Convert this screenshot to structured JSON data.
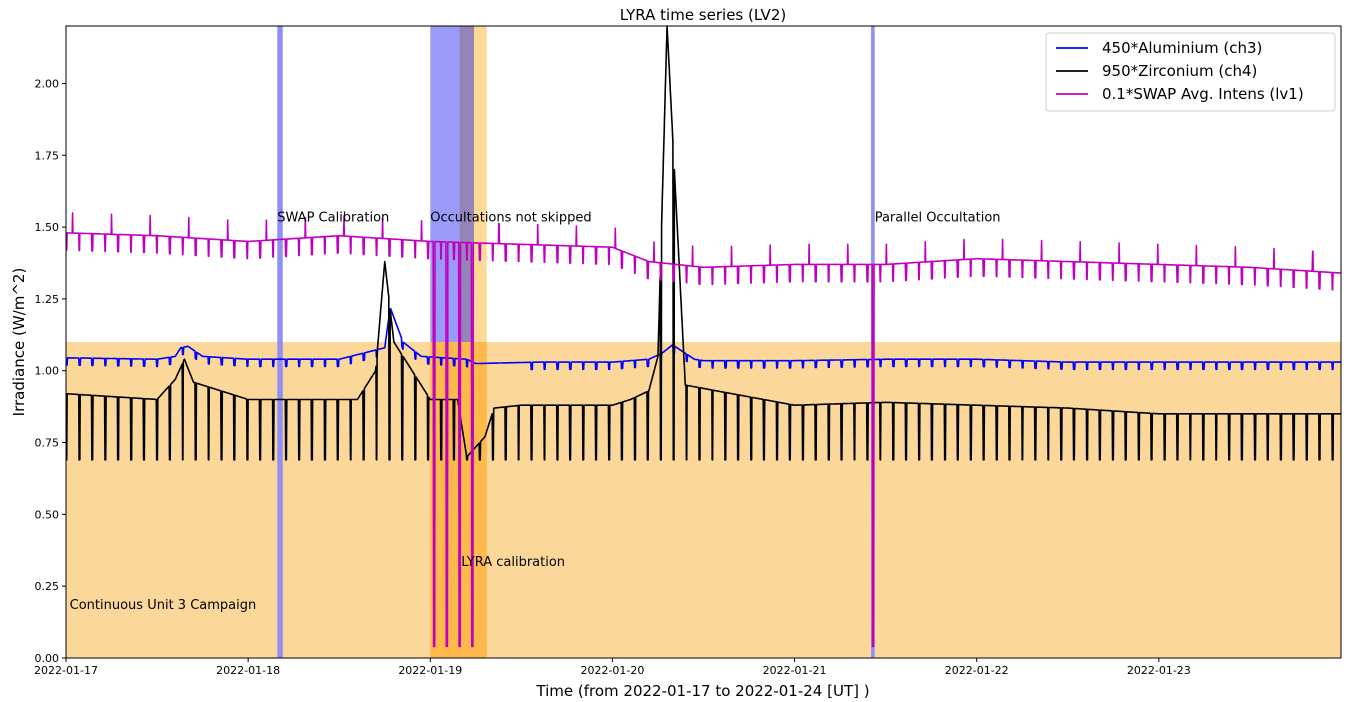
{
  "chart_data": {
    "type": "line",
    "title": "LYRA time series (LV2)",
    "xlabel": "Time (from 2022-01-17 to 2022-01-24 [UT] )",
    "ylabel": "Irradiance (W/m^2)",
    "xlim_days": [
      0,
      7
    ],
    "ylim": [
      0,
      2.2
    ],
    "y_ticks": [
      0.0,
      0.25,
      0.5,
      0.75,
      1.0,
      1.25,
      1.5,
      1.75,
      2.0
    ],
    "y_tick_labels": [
      "0.00",
      "0.25",
      "0.50",
      "0.75",
      "1.00",
      "1.25",
      "1.50",
      "1.75",
      "2.00"
    ],
    "x_ticks": [
      "2022-01-17",
      "2022-01-18",
      "2022-01-19",
      "2022-01-20",
      "2022-01-21",
      "2022-01-22",
      "2022-01-23"
    ],
    "legend_position": "top-right",
    "grid": false,
    "series": [
      {
        "name": "450*Aluminium (ch3)",
        "color": "#0000ff",
        "x_days": [
          0.0,
          0.5,
          0.6,
          0.63,
          0.67,
          0.75,
          1.0,
          1.5,
          1.75,
          1.78,
          1.85,
          1.95,
          2.2,
          2.25,
          2.6,
          2.8,
          3.0,
          3.2,
          3.27,
          3.33,
          3.45,
          3.5,
          4.0,
          4.5,
          5.0,
          5.5,
          6.0,
          6.5,
          7.0
        ],
        "values": [
          1.045,
          1.04,
          1.05,
          1.08,
          1.085,
          1.05,
          1.04,
          1.04,
          1.08,
          1.22,
          1.1,
          1.05,
          1.04,
          1.025,
          1.03,
          1.03,
          1.03,
          1.04,
          1.06,
          1.09,
          1.04,
          1.035,
          1.035,
          1.04,
          1.04,
          1.03,
          1.03,
          1.03,
          1.03
        ]
      },
      {
        "name": "950*Zirconium (ch4)",
        "color": "#000000",
        "x_days": [
          0.0,
          0.5,
          0.6,
          0.65,
          0.7,
          1.0,
          1.2,
          1.6,
          1.7,
          1.75,
          1.8,
          1.9,
          2.0,
          2.15,
          2.2,
          2.3,
          2.35,
          2.5,
          3.0,
          3.1,
          3.2,
          3.25,
          3.3,
          3.4,
          4.0,
          4.5,
          5.0,
          5.5,
          6.0,
          6.5,
          7.0
        ],
        "values": [
          0.92,
          0.9,
          0.97,
          1.04,
          0.96,
          0.9,
          0.9,
          0.9,
          1.0,
          1.38,
          1.1,
          1.0,
          0.9,
          0.9,
          0.7,
          0.77,
          0.87,
          0.88,
          0.88,
          0.9,
          0.93,
          1.05,
          2.2,
          0.95,
          0.88,
          0.89,
          0.88,
          0.87,
          0.85,
          0.85,
          0.85
        ],
        "baseline": 0.69
      },
      {
        "name": "0.1*SWAP Avg. Intens (lv1)",
        "color": "#c000c0",
        "x_days": [
          0.0,
          0.5,
          1.0,
          1.5,
          2.0,
          2.5,
          3.0,
          3.2,
          3.5,
          4.0,
          4.5,
          5.0,
          5.5,
          6.0,
          6.5,
          7.0
        ],
        "values": [
          1.48,
          1.47,
          1.45,
          1.47,
          1.45,
          1.44,
          1.43,
          1.38,
          1.36,
          1.37,
          1.37,
          1.39,
          1.38,
          1.37,
          1.36,
          1.34
        ]
      }
    ],
    "annotations": [
      {
        "text": "SWAP Calibration",
        "x_days": 1.16,
        "y": 1.52
      },
      {
        "text": "Occultations not skipped",
        "x_days": 2.0,
        "y": 1.52
      },
      {
        "text": "Parallel Occultation",
        "x_days": 4.44,
        "y": 1.52
      },
      {
        "text": "LYRA calibration",
        "x_days": 2.17,
        "y": 0.32
      },
      {
        "text": "Continuous Unit 3 Campaign",
        "x_days": 0.02,
        "y": 0.17
      }
    ],
    "shaded_regions": [
      {
        "color": "#fbd899",
        "x_days": [
          0,
          7
        ],
        "y": [
          0,
          1.1
        ]
      },
      {
        "color": "#8f8ff7",
        "x_days": [
          1.16,
          1.19
        ],
        "y": [
          0,
          2.2
        ]
      },
      {
        "color": "#9a9af7",
        "x_days": [
          2.0,
          2.16
        ],
        "y": [
          1.1,
          2.2
        ]
      },
      {
        "color": "#9484b8",
        "x_days": [
          2.16,
          2.24
        ],
        "y": [
          1.1,
          2.2
        ]
      },
      {
        "color": "#ffd996",
        "x_days": [
          2.24,
          2.31
        ],
        "y": [
          1.1,
          2.2
        ]
      },
      {
        "color": "#ffb84a",
        "x_days": [
          2.0,
          2.31
        ],
        "y": [
          0,
          1.1
        ]
      },
      {
        "color": "#8f8ff7",
        "x_days": [
          4.42,
          4.44
        ],
        "y": [
          0,
          2.2
        ]
      }
    ]
  }
}
